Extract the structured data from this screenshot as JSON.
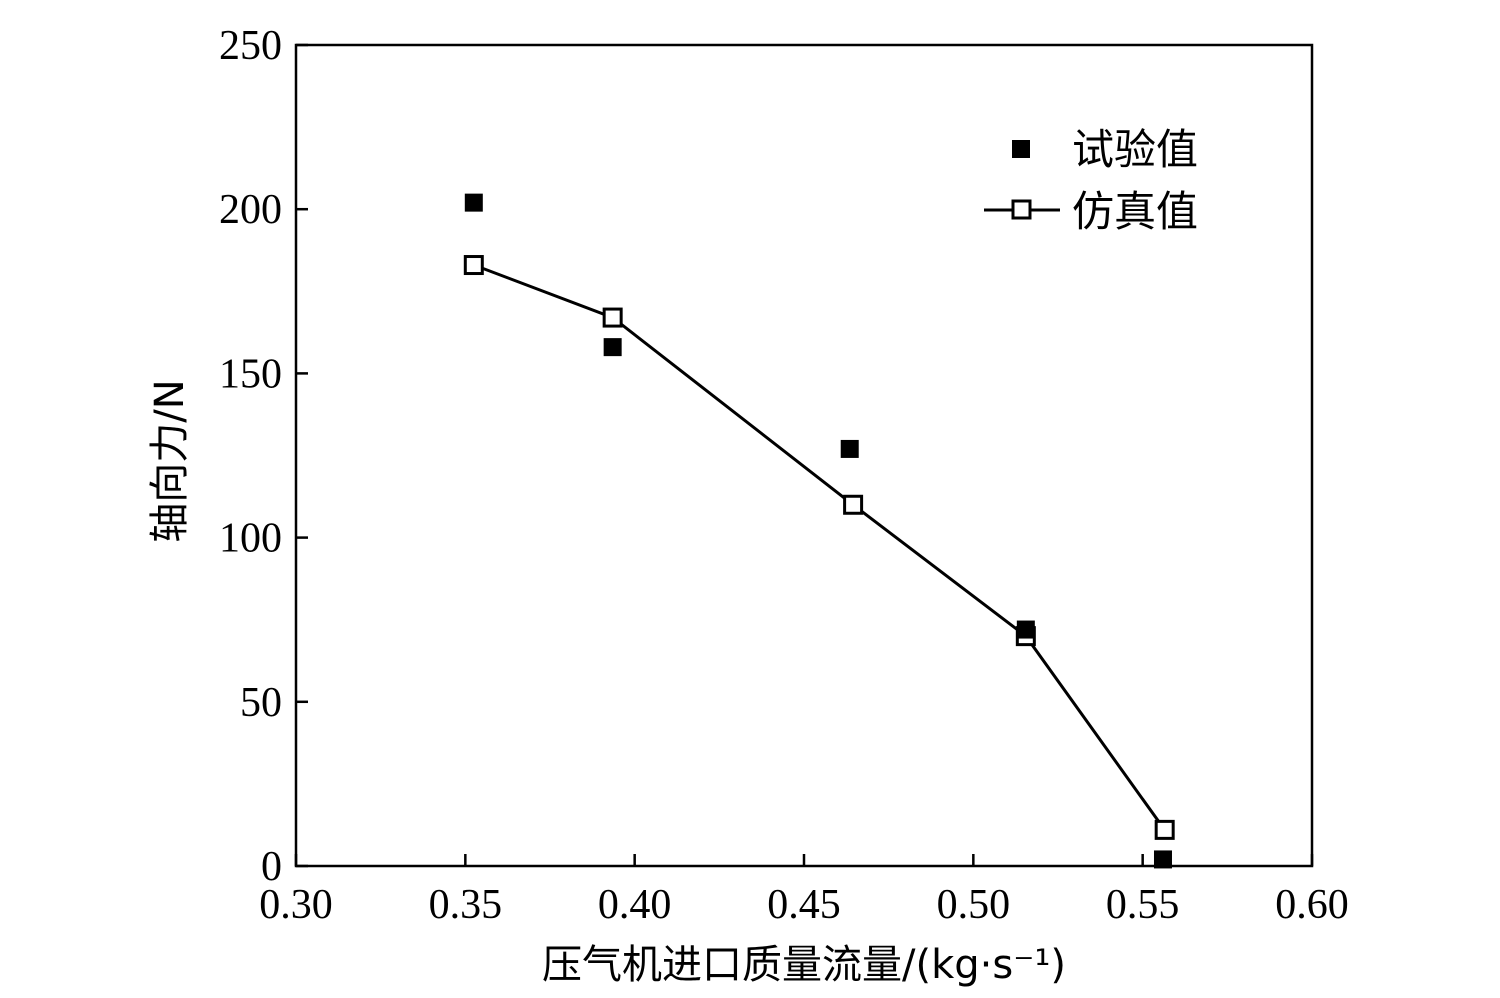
{
  "chart_data": {
    "type": "scatter",
    "xlabel": "压气机进口质量流量/(kg·s⁻¹)",
    "ylabel": "轴向力/N",
    "xlim": [
      0.3,
      0.6
    ],
    "ylim": [
      0,
      250
    ],
    "x_ticks": [
      "0.30",
      "0.35",
      "0.40",
      "0.45",
      "0.50",
      "0.55",
      "0.60"
    ],
    "y_ticks": [
      "0",
      "50",
      "100",
      "150",
      "200",
      "250"
    ],
    "grid": false,
    "legend_position": "top-right",
    "series": [
      {
        "name": "试验值",
        "style": "filled-square-markers",
        "color": "#000000",
        "points": [
          {
            "x": 0.3525,
            "y": 202
          },
          {
            "x": 0.3935,
            "y": 158
          },
          {
            "x": 0.4635,
            "y": 127
          },
          {
            "x": 0.5155,
            "y": 72
          },
          {
            "x": 0.556,
            "y": 2
          }
        ]
      },
      {
        "name": "仿真值",
        "style": "line-with-open-square-markers",
        "color": "#000000",
        "points": [
          {
            "x": 0.3525,
            "y": 183
          },
          {
            "x": 0.3935,
            "y": 167
          },
          {
            "x": 0.4645,
            "y": 110
          },
          {
            "x": 0.5155,
            "y": 70
          },
          {
            "x": 0.5565,
            "y": 11
          }
        ]
      }
    ]
  }
}
